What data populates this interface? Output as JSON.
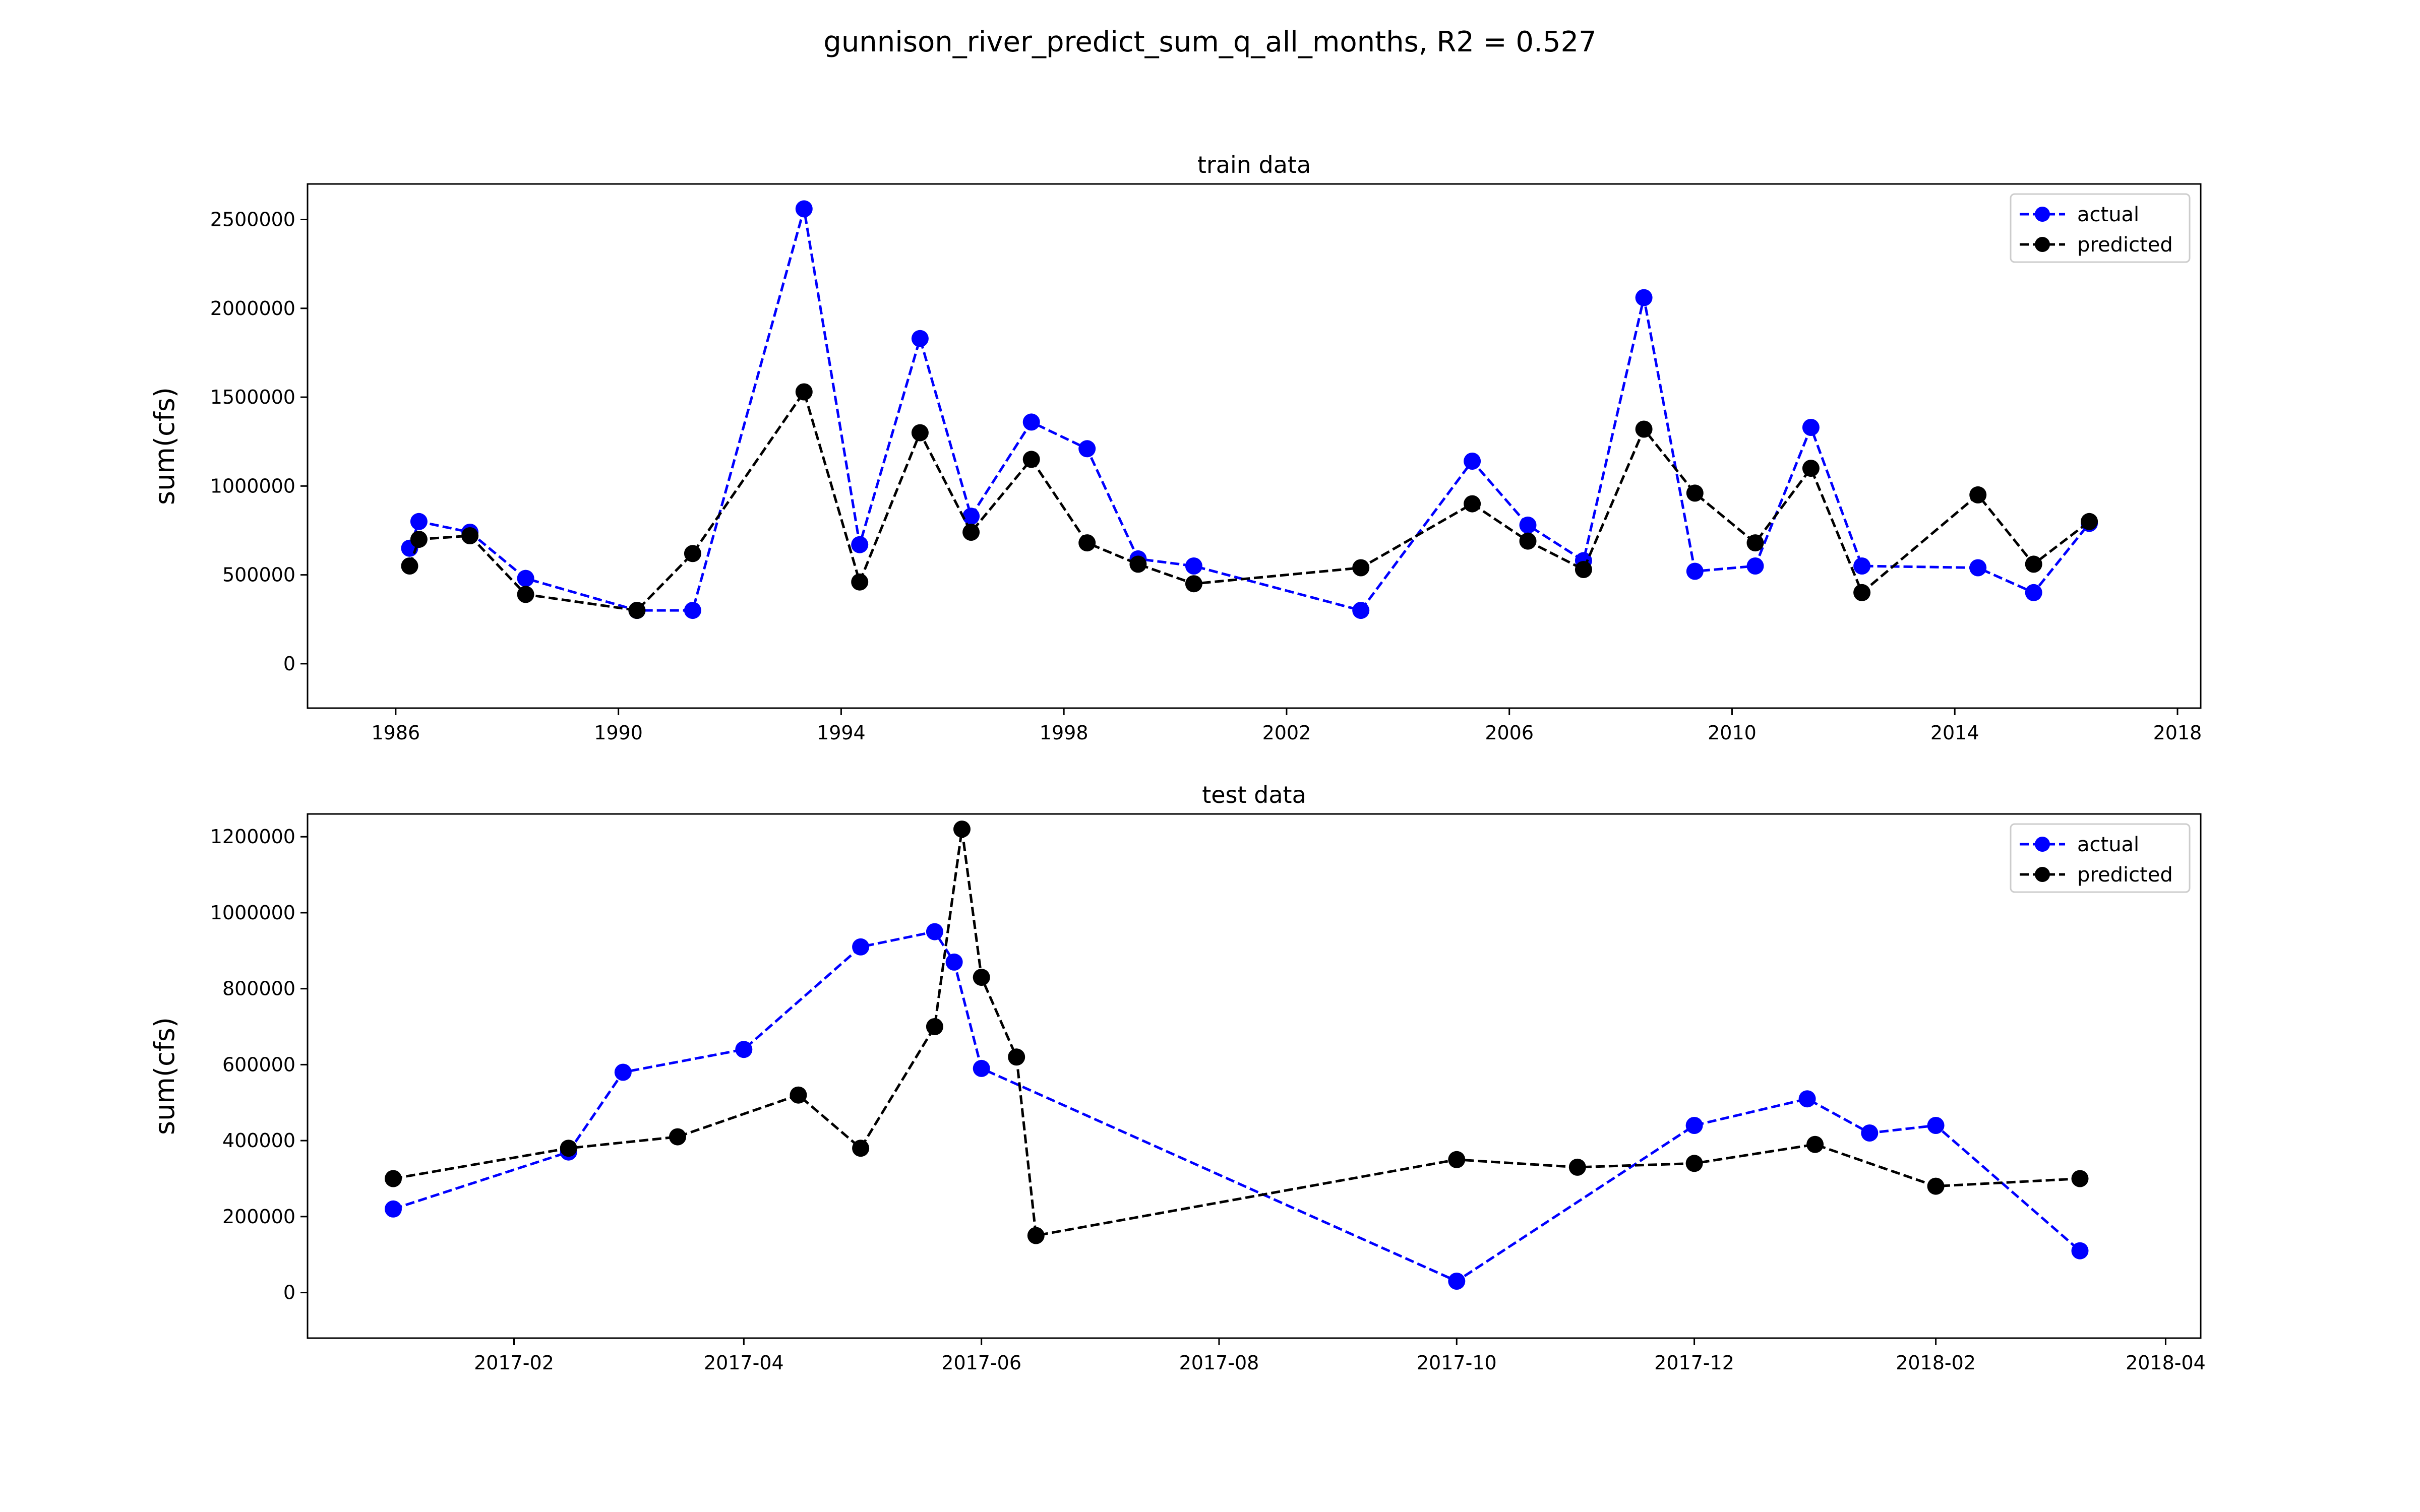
{
  "figure": {
    "suptitle": "gunnison_river_predict_sum_q_all_months, R2 = 0.527"
  },
  "colors": {
    "actual": "#0000ff",
    "predicted": "#000000",
    "background": "#ffffff"
  },
  "chart_data": [
    {
      "type": "line",
      "title": "train data",
      "xlabel": "",
      "ylabel": "sum(cfs)",
      "x_scale": "time (years)",
      "xlim": [
        "1984-06",
        "2018-06"
      ],
      "ylim": [
        -250000,
        2700000
      ],
      "x_ticks": [
        "1986",
        "1990",
        "1994",
        "1998",
        "2002",
        "2006",
        "2010",
        "2014",
        "2018"
      ],
      "y_ticks": [
        "0",
        "500000",
        "1000000",
        "1500000",
        "2000000",
        "2500000"
      ],
      "grid": false,
      "legend": {
        "position": "top-right",
        "entries": [
          "actual",
          "predicted"
        ]
      },
      "series": [
        {
          "name": "actual",
          "style": "dashed line with circle markers",
          "x": [
            "1986-04",
            "1986-06",
            "1987-05",
            "1988-05",
            "1990-05",
            "1991-05",
            "1993-05",
            "1994-05",
            "1995-06",
            "1996-05",
            "1997-06",
            "1998-06",
            "1999-05",
            "2000-05",
            "2003-05",
            "2005-05",
            "2006-05",
            "2007-05",
            "2008-06",
            "2009-05",
            "2010-06",
            "2011-06",
            "2012-05",
            "2014-06",
            "2015-06",
            "2016-06"
          ],
          "y": [
            650000,
            800000,
            740000,
            480000,
            300000,
            300000,
            2560000,
            670000,
            1830000,
            830000,
            1360000,
            1210000,
            590000,
            550000,
            300000,
            1140000,
            780000,
            580000,
            2060000,
            520000,
            550000,
            1330000,
            550000,
            540000,
            400000,
            790000
          ]
        },
        {
          "name": "predicted",
          "style": "dashed line with circle markers",
          "x": [
            "1986-04",
            "1986-06",
            "1987-05",
            "1988-05",
            "1990-05",
            "1991-05",
            "1993-05",
            "1994-05",
            "1995-06",
            "1996-05",
            "1997-06",
            "1998-06",
            "1999-05",
            "2000-05",
            "2003-05",
            "2005-05",
            "2006-05",
            "2007-05",
            "2008-06",
            "2009-05",
            "2010-06",
            "2011-06",
            "2012-05",
            "2014-06",
            "2015-06",
            "2016-06"
          ],
          "y": [
            550000,
            700000,
            720000,
            390000,
            300000,
            620000,
            1530000,
            460000,
            1300000,
            740000,
            1150000,
            680000,
            560000,
            450000,
            540000,
            900000,
            690000,
            530000,
            1320000,
            960000,
            680000,
            1100000,
            400000,
            950000,
            560000,
            800000
          ]
        }
      ]
    },
    {
      "type": "line",
      "title": "test data",
      "xlabel": "",
      "ylabel": "sum(cfs)",
      "x_scale": "time (dates)",
      "xlim": [
        "2016-12-10",
        "2018-04-10"
      ],
      "ylim": [
        -120000,
        1260000
      ],
      "x_ticks": [
        "2017-02",
        "2017-04",
        "2017-06",
        "2017-08",
        "2017-10",
        "2017-12",
        "2018-02",
        "2018-04"
      ],
      "y_ticks": [
        "0",
        "200000",
        "400000",
        "600000",
        "800000",
        "1000000",
        "1200000"
      ],
      "grid": false,
      "legend": {
        "position": "top-right",
        "entries": [
          "actual",
          "predicted"
        ]
      },
      "series": [
        {
          "name": "actual",
          "style": "dashed line with circle markers",
          "x": [
            "2017-01-01",
            "2017-02-15",
            "2017-03-01",
            "2017-04-01",
            "2017-05-01",
            "2017-05-20",
            "2017-05-25",
            "2017-06-01",
            "2017-10-01",
            "2017-12-01",
            "2017-12-30",
            "2018-01-15",
            "2018-02-01",
            "2018-03-10"
          ],
          "y": [
            220000,
            370000,
            580000,
            640000,
            910000,
            950000,
            870000,
            590000,
            30000,
            440000,
            510000,
            420000,
            440000,
            110000
          ]
        },
        {
          "name": "predicted",
          "style": "dashed line with circle markers",
          "x": [
            "2017-01-01",
            "2017-02-15",
            "2017-03-15",
            "2017-04-15",
            "2017-05-01",
            "2017-05-20",
            "2017-05-27",
            "2017-06-01",
            "2017-06-10",
            "2017-06-15",
            "2017-10-01",
            "2017-11-01",
            "2017-12-01",
            "2018-01-01",
            "2018-02-01",
            "2018-03-10"
          ],
          "y": [
            300000,
            380000,
            410000,
            520000,
            380000,
            700000,
            1220000,
            830000,
            620000,
            150000,
            350000,
            330000,
            340000,
            390000,
            280000,
            300000
          ]
        }
      ]
    }
  ]
}
